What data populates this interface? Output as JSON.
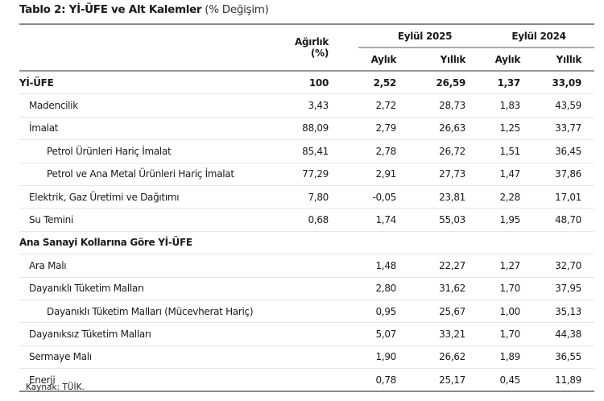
{
  "title": {
    "bold": "Tablo 2: Yİ-ÜFE ve Alt Kalemler",
    "sub": "(% Değişim)"
  },
  "header": {
    "weight": "Ağırlık (%)",
    "period1": "Eylül 2025",
    "period2": "Eylül 2024",
    "monthly": "Aylık",
    "annual": "Yıllık"
  },
  "rows": [
    {
      "label": "Yİ-ÜFE",
      "level": 0,
      "bold": true,
      "weight": "100",
      "m25": "2,52",
      "a25": "26,59",
      "m24": "1,37",
      "a24": "33,09"
    },
    {
      "label": "Madencilik",
      "level": 1,
      "weight": "3,43",
      "m25": "2,72",
      "a25": "28,73",
      "m24": "1,83",
      "a24": "43,59"
    },
    {
      "label": "İmalat",
      "level": 1,
      "weight": "88,09",
      "m25": "2,79",
      "a25": "26,63",
      "m24": "1,25",
      "a24": "33,77"
    },
    {
      "label": "Petrol Ürünleri Hariç İmalat",
      "level": 2,
      "weight": "85,41",
      "m25": "2,78",
      "a25": "26,72",
      "m24": "1,51",
      "a24": "36,45"
    },
    {
      "label": "Petrol ve Ana Metal Ürünleri Hariç İmalat",
      "level": 2,
      "weight": "77,29",
      "m25": "2,91",
      "a25": "27,73",
      "m24": "1,47",
      "a24": "37,86"
    },
    {
      "label": "Elektrik, Gaz Üretimi ve Dağıtımı",
      "level": 1,
      "weight": "7,80",
      "m25": "-0,05",
      "a25": "23,81",
      "m24": "2,28",
      "a24": "17,01"
    },
    {
      "label": "Su Temini",
      "level": 1,
      "weight": "0,68",
      "m25": "1,74",
      "a25": "55,03",
      "m24": "1,95",
      "a24": "48,70"
    },
    {
      "label": "Ana Sanayi Kollarına Göre Yİ-ÜFE",
      "level": 0,
      "bold": true,
      "weight": "",
      "m25": "",
      "a25": "",
      "m24": "",
      "a24": ""
    },
    {
      "label": "Ara Malı",
      "level": 1,
      "weight": "",
      "m25": "1,48",
      "a25": "22,27",
      "m24": "1,27",
      "a24": "32,70"
    },
    {
      "label": "Dayanıklı Tüketim Malları",
      "level": 1,
      "weight": "",
      "m25": "2,80",
      "a25": "31,62",
      "m24": "1,70",
      "a24": "37,95"
    },
    {
      "label": "Dayanıklı Tüketim Malları (Mücevherat Hariç)",
      "level": 2,
      "weight": "",
      "m25": "0,95",
      "a25": "25,67",
      "m24": "1,00",
      "a24": "35,13"
    },
    {
      "label": "Dayanıksız Tüketim Malları",
      "level": 1,
      "weight": "",
      "m25": "5,07",
      "a25": "33,21",
      "m24": "1,70",
      "a24": "44,38"
    },
    {
      "label": "Sermaye Malı",
      "level": 1,
      "weight": "",
      "m25": "1,90",
      "a25": "26,62",
      "m24": "1,89",
      "a24": "36,55"
    },
    {
      "label": "Enerji",
      "level": 1,
      "weight": "",
      "m25": "0,78",
      "a25": "25,17",
      "m24": "0,45",
      "a24": "11,89"
    }
  ],
  "source": "Kaynak: TÜİK."
}
